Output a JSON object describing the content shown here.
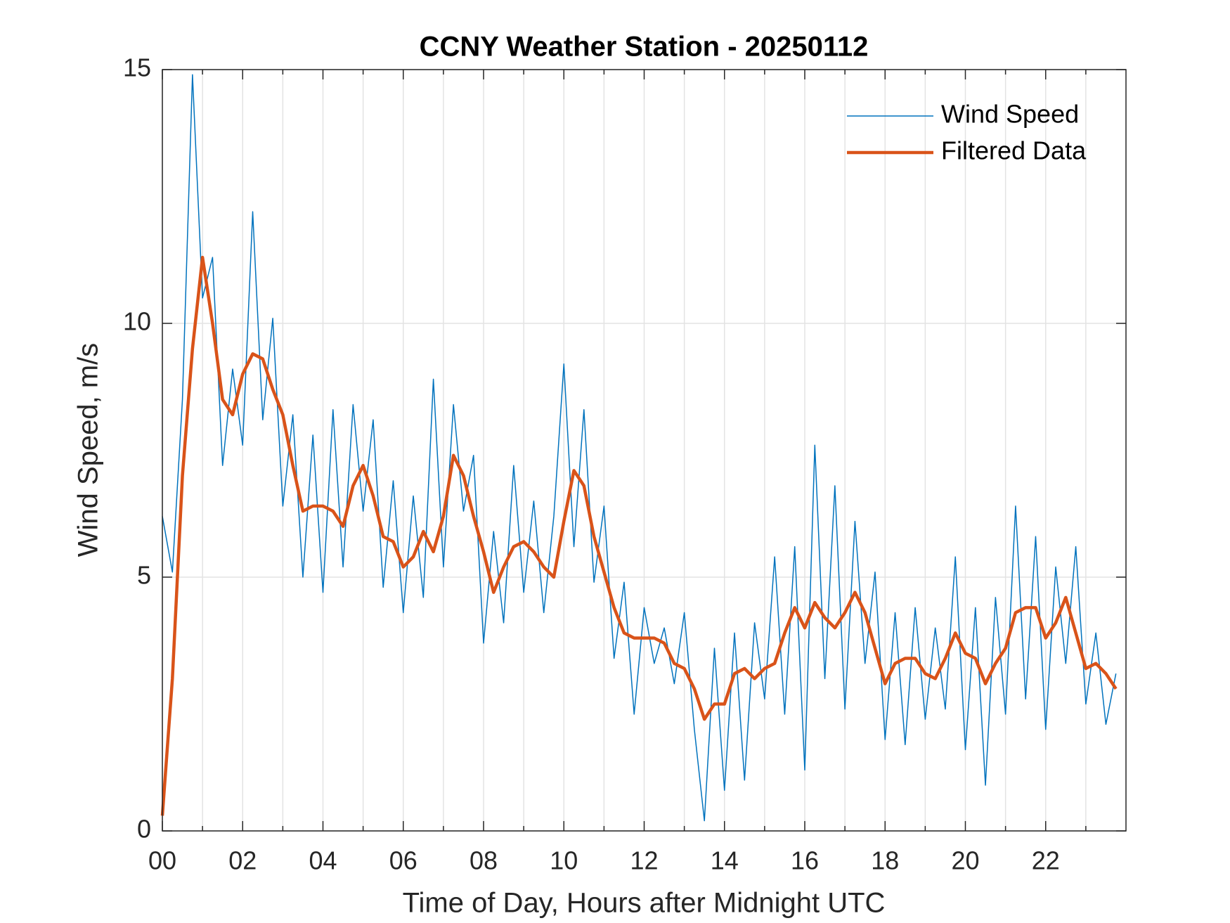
{
  "chart_data": {
    "type": "line",
    "title": "CCNY Weather Station - 20250112",
    "xlabel": "Time of Day, Hours after Midnight UTC",
    "ylabel": "Wind Speed, m/s",
    "x": [
      0,
      0.25,
      0.5,
      0.75,
      1,
      1.25,
      1.5,
      1.75,
      2,
      2.25,
      2.5,
      2.75,
      3,
      3.25,
      3.5,
      3.75,
      4,
      4.25,
      4.5,
      4.75,
      5,
      5.25,
      5.5,
      5.75,
      6,
      6.25,
      6.5,
      6.75,
      7,
      7.25,
      7.5,
      7.75,
      8,
      8.25,
      8.5,
      8.75,
      9,
      9.25,
      9.5,
      9.75,
      10,
      10.25,
      10.5,
      10.75,
      11,
      11.25,
      11.5,
      11.75,
      12,
      12.25,
      12.5,
      12.75,
      13,
      13.25,
      13.5,
      13.75,
      14,
      14.25,
      14.5,
      14.75,
      15,
      15.25,
      15.5,
      15.75,
      16,
      16.25,
      16.5,
      16.75,
      17,
      17.25,
      17.5,
      17.75,
      18,
      18.25,
      18.5,
      18.75,
      19,
      19.25,
      19.5,
      19.75,
      20,
      20.25,
      20.5,
      20.75,
      21,
      21.25,
      21.5,
      21.75,
      22,
      22.25,
      22.5,
      22.75,
      23,
      23.25,
      23.5,
      23.75
    ],
    "series": [
      {
        "name": "Wind Speed",
        "color": "#0072bd",
        "width": 1.5,
        "values": [
          6.2,
          5.1,
          8.5,
          14.9,
          10.5,
          11.3,
          7.2,
          9.1,
          7.6,
          12.2,
          8.1,
          10.1,
          6.4,
          8.2,
          5.0,
          7.8,
          4.7,
          8.3,
          5.2,
          8.4,
          6.3,
          8.1,
          4.8,
          6.9,
          4.3,
          6.6,
          4.6,
          8.9,
          5.2,
          8.4,
          6.3,
          7.4,
          3.7,
          5.9,
          4.1,
          7.2,
          4.7,
          6.5,
          4.3,
          6.2,
          9.2,
          5.6,
          8.3,
          4.9,
          6.4,
          3.4,
          4.9,
          2.3,
          4.4,
          3.3,
          4.0,
          2.9,
          4.3,
          2.0,
          0.2,
          3.6,
          0.8,
          3.9,
          1.0,
          4.1,
          2.6,
          5.4,
          2.3,
          5.6,
          1.2,
          7.6,
          3.0,
          6.8,
          2.4,
          6.1,
          3.3,
          5.1,
          1.8,
          4.3,
          1.7,
          4.4,
          2.2,
          4.0,
          2.4,
          5.4,
          1.6,
          4.4,
          0.9,
          4.6,
          2.3,
          6.4,
          2.6,
          5.8,
          2.0,
          5.2,
          3.3,
          5.6,
          2.5,
          3.9,
          2.1,
          3.1
        ]
      },
      {
        "name": "Filtered Data",
        "color": "#d95319",
        "width": 4.5,
        "values": [
          0.3,
          3.0,
          7.0,
          9.5,
          11.3,
          10.0,
          8.5,
          8.2,
          9.0,
          9.4,
          9.3,
          8.7,
          8.2,
          7.2,
          6.3,
          6.4,
          6.4,
          6.3,
          6.0,
          6.8,
          7.2,
          6.6,
          5.8,
          5.7,
          5.2,
          5.4,
          5.9,
          5.5,
          6.2,
          7.4,
          7.0,
          6.2,
          5.5,
          4.7,
          5.2,
          5.6,
          5.7,
          5.5,
          5.2,
          5.0,
          6.1,
          7.1,
          6.8,
          5.8,
          5.1,
          4.4,
          3.9,
          3.8,
          3.8,
          3.8,
          3.7,
          3.3,
          3.2,
          2.8,
          2.2,
          2.5,
          2.5,
          3.1,
          3.2,
          3.0,
          3.2,
          3.3,
          3.9,
          4.4,
          4.0,
          4.5,
          4.2,
          4.0,
          4.3,
          4.7,
          4.3,
          3.6,
          2.9,
          3.3,
          3.4,
          3.4,
          3.1,
          3.0,
          3.4,
          3.9,
          3.5,
          3.4,
          2.9,
          3.3,
          3.6,
          4.3,
          4.4,
          4.4,
          3.8,
          4.1,
          4.6,
          3.9,
          3.2,
          3.3,
          3.1,
          2.8
        ]
      }
    ],
    "xlim": [
      0,
      24
    ],
    "xticks": [
      {
        "value": 0,
        "label": "00"
      },
      {
        "value": 2,
        "label": "02"
      },
      {
        "value": 4,
        "label": "04"
      },
      {
        "value": 6,
        "label": "06"
      },
      {
        "value": 8,
        "label": "08"
      },
      {
        "value": 10,
        "label": "10"
      },
      {
        "value": 12,
        "label": "12"
      },
      {
        "value": 14,
        "label": "14"
      },
      {
        "value": 16,
        "label": "16"
      },
      {
        "value": 18,
        "label": "18"
      },
      {
        "value": 20,
        "label": "20"
      },
      {
        "value": 22,
        "label": "22"
      }
    ],
    "xminorticks": [
      1,
      3,
      5,
      7,
      9,
      11,
      13,
      15,
      17,
      19,
      21,
      23
    ],
    "ylim": [
      0,
      15
    ],
    "yticks": [
      0,
      5,
      10,
      15
    ],
    "grid": true,
    "legend": "top-right"
  }
}
